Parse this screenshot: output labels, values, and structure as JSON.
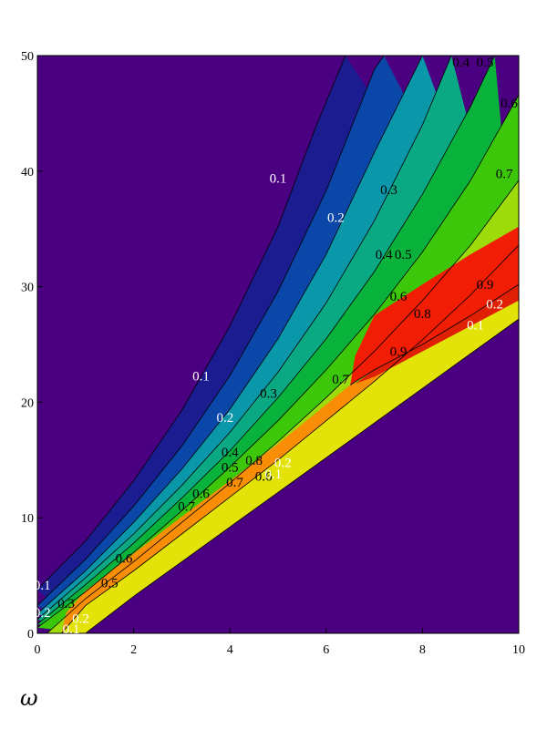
{
  "chart_data": {
    "type": "contour",
    "title": "",
    "xlabel": "ω",
    "ylabel": "",
    "xlim": [
      0,
      10
    ],
    "ylim": [
      0,
      50
    ],
    "x_ticks": [
      "0",
      "2",
      "4",
      "6",
      "8",
      "10"
    ],
    "y_ticks": [
      "0",
      "10",
      "20",
      "30",
      "40",
      "50"
    ],
    "levels": [
      0.1,
      0.2,
      0.3,
      0.4,
      0.5,
      0.6,
      0.7,
      0.8,
      0.9
    ],
    "colors": {
      "background": "#4b0082",
      "bands": [
        "#1c1c91",
        "#0a47a8",
        "#0b97aa",
        "#0aa983",
        "#09b33b",
        "#3cc70a",
        "#9ddb0a",
        "#e3e30a",
        "#f98d05",
        "#f21d05"
      ]
    },
    "grid": false,
    "legend": "none",
    "contour_lines": [
      {
        "level": "0.1",
        "points": [
          [
            0,
            3.8
          ],
          [
            1,
            8
          ],
          [
            2,
            13.2
          ],
          [
            3,
            19.3
          ],
          [
            4,
            26.6
          ],
          [
            5,
            35.2
          ],
          [
            5.8,
            44
          ],
          [
            6.4,
            50
          ]
        ]
      },
      {
        "level": "0.2",
        "points": [
          [
            0,
            2.4
          ],
          [
            1,
            6.4
          ],
          [
            2,
            11
          ],
          [
            3,
            16.2
          ],
          [
            4,
            22.3
          ],
          [
            5,
            29.6
          ],
          [
            6,
            38.3
          ],
          [
            7,
            48.8
          ],
          [
            7.2,
            50
          ]
        ]
      },
      {
        "level": "0.3",
        "points": [
          [
            0,
            1.7
          ],
          [
            1,
            5.4
          ],
          [
            2,
            9.6
          ],
          [
            3,
            14.2
          ],
          [
            4,
            19.4
          ],
          [
            5,
            25.5
          ],
          [
            6,
            32.8
          ],
          [
            7,
            41.6
          ],
          [
            8,
            50
          ]
        ]
      },
      {
        "level": "0.4",
        "points": [
          [
            0,
            1.2
          ],
          [
            1,
            4.8
          ],
          [
            2,
            8.6
          ],
          [
            3,
            12.8
          ],
          [
            4,
            17.4
          ],
          [
            5,
            22.6
          ],
          [
            6,
            28.6
          ],
          [
            7,
            35.7
          ],
          [
            8,
            44
          ],
          [
            8.6,
            50
          ]
        ]
      },
      {
        "level": "0.5",
        "points": [
          [
            0,
            0.8
          ],
          [
            1,
            4.2
          ],
          [
            2,
            7.8
          ],
          [
            3,
            11.7
          ],
          [
            4,
            15.8
          ],
          [
            5,
            20.4
          ],
          [
            6,
            25.5
          ],
          [
            7,
            31.3
          ],
          [
            8,
            38
          ],
          [
            9,
            45.6
          ],
          [
            9.5,
            50
          ]
        ]
      },
      {
        "level": "0.6",
        "points": [
          [
            0,
            0.5
          ],
          [
            1,
            3.6
          ],
          [
            2,
            7
          ],
          [
            3,
            10.6
          ],
          [
            4,
            14.4
          ],
          [
            5,
            18.4
          ],
          [
            6,
            22.8
          ],
          [
            7,
            27.6
          ],
          [
            8,
            33
          ],
          [
            9,
            39.2
          ],
          [
            10,
            46.6
          ]
        ]
      },
      {
        "level": "0.7",
        "points": [
          [
            0.2,
            0
          ],
          [
            1,
            3
          ],
          [
            2,
            6.2
          ],
          [
            3,
            9.6
          ],
          [
            4,
            13
          ],
          [
            5,
            16.6
          ],
          [
            6,
            20.4
          ],
          [
            7,
            24.4
          ],
          [
            8,
            28.8
          ],
          [
            9,
            33.6
          ],
          [
            10,
            39.2
          ]
        ]
      },
      {
        "level": "0.8",
        "points": [
          [
            0.5,
            0
          ],
          [
            1,
            2.4
          ],
          [
            2,
            5.4
          ],
          [
            3,
            8.6
          ],
          [
            4,
            11.8
          ],
          [
            5,
            15
          ],
          [
            6,
            18.4
          ],
          [
            7,
            21.8
          ],
          [
            8,
            25.4
          ],
          [
            9,
            29.3
          ],
          [
            10,
            33.6
          ]
        ]
      },
      {
        "level": "0.9",
        "points": [
          [
            6.5,
            21.5
          ],
          [
            7,
            22.8
          ],
          [
            8,
            25
          ],
          [
            9,
            27.5
          ],
          [
            10,
            30.2
          ]
        ]
      },
      {
        "level": "0.1",
        "points": [
          [
            1,
            0
          ],
          [
            2,
            3.2
          ],
          [
            3,
            6.2
          ],
          [
            4,
            9.2
          ],
          [
            5,
            12.2
          ],
          [
            6,
            15.2
          ],
          [
            7,
            18.2
          ],
          [
            8,
            21.2
          ],
          [
            9,
            24.2
          ],
          [
            10,
            27.2
          ]
        ]
      }
    ],
    "labels": [
      {
        "text": "0.1",
        "x": 5.0,
        "y": 39.0,
        "color": "#ffffff"
      },
      {
        "text": "0.2",
        "x": 6.2,
        "y": 35.6,
        "color": "#ffffff"
      },
      {
        "text": "0.3",
        "x": 7.3,
        "y": 38.0,
        "color": "#000000"
      },
      {
        "text": "0.4",
        "x": 7.2,
        "y": 32.4,
        "color": "#000000"
      },
      {
        "text": "0.5",
        "x": 7.6,
        "y": 32.4,
        "color": "#000000"
      },
      {
        "text": "0.6",
        "x": 7.5,
        "y": 28.8,
        "color": "#000000"
      },
      {
        "text": "0.8",
        "x": 8.0,
        "y": 27.3,
        "color": "#000000"
      },
      {
        "text": "0.9",
        "x": 7.5,
        "y": 24.0,
        "color": "#000000"
      },
      {
        "text": "0.7",
        "x": 6.3,
        "y": 21.6,
        "color": "#000000"
      },
      {
        "text": "0.4",
        "x": 8.8,
        "y": 49.6,
        "color": "#000000"
      },
      {
        "text": "0.5",
        "x": 9.3,
        "y": 49.8,
        "color": "#000000"
      },
      {
        "text": "0.6",
        "x": 9.8,
        "y": 45.5,
        "color": "#000000"
      },
      {
        "text": "0.7",
        "x": 9.7,
        "y": 39.4,
        "color": "#000000"
      },
      {
        "text": "0.9",
        "x": 9.3,
        "y": 29.8,
        "color": "#000000"
      },
      {
        "text": "0.2",
        "x": 9.5,
        "y": 28.1,
        "color": "#ffffff"
      },
      {
        "text": "0.1",
        "x": 9.1,
        "y": 26.3,
        "color": "#ffffff"
      },
      {
        "text": "0.1",
        "x": 3.4,
        "y": 21.9,
        "color": "#ffffff"
      },
      {
        "text": "0.2",
        "x": 3.9,
        "y": 18.3,
        "color": "#ffffff"
      },
      {
        "text": "0.3",
        "x": 4.8,
        "y": 20.4,
        "color": "#000000"
      },
      {
        "text": "0.4",
        "x": 4.0,
        "y": 15.3,
        "color": "#000000"
      },
      {
        "text": "0.5",
        "x": 4.0,
        "y": 14.0,
        "color": "#000000"
      },
      {
        "text": "0.8",
        "x": 4.5,
        "y": 14.6,
        "color": "#000000"
      },
      {
        "text": "0.7",
        "x": 4.1,
        "y": 12.7,
        "color": "#000000"
      },
      {
        "text": "0.6",
        "x": 4.7,
        "y": 13.2,
        "color": "#000000"
      },
      {
        "text": "0.2",
        "x": 5.1,
        "y": 14.4,
        "color": "#ffffff"
      },
      {
        "text": "0.1",
        "x": 4.9,
        "y": 13.4,
        "color": "#ffffff"
      },
      {
        "text": "0.6",
        "x": 3.4,
        "y": 11.7,
        "color": "#000000"
      },
      {
        "text": "0.7",
        "x": 3.1,
        "y": 10.6,
        "color": "#000000"
      },
      {
        "text": "0.6",
        "x": 1.8,
        "y": 6.1,
        "color": "#000000"
      },
      {
        "text": "0.1",
        "x": 0.1,
        "y": 3.8,
        "color": "#ffffff"
      },
      {
        "text": "0.2",
        "x": 0.1,
        "y": 1.4,
        "color": "#ffffff"
      },
      {
        "text": "0.3",
        "x": 0.6,
        "y": 2.2,
        "color": "#000000"
      },
      {
        "text": "0.5",
        "x": 1.5,
        "y": 4.0,
        "color": "#000000"
      },
      {
        "text": "0.2",
        "x": 0.9,
        "y": 0.9,
        "color": "#ffffff"
      },
      {
        "text": "0.1",
        "x": 0.7,
        "y": 0.0,
        "color": "#ffffff"
      }
    ]
  }
}
